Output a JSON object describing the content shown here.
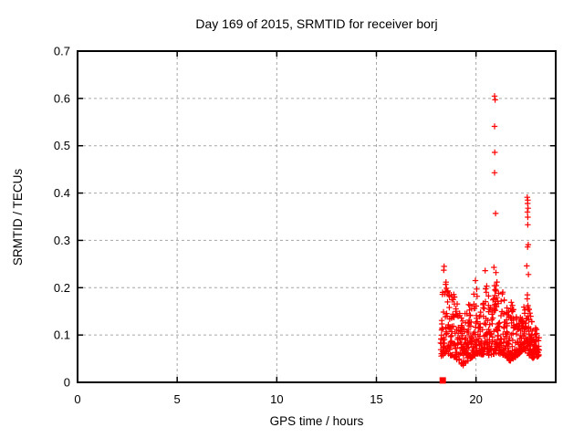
{
  "figure": {
    "background": "#ffffff",
    "kind": "gnuplot-style scatter plot"
  },
  "chart_data": {
    "type": "scatter",
    "title": "Day 169 of 2015, SRMTID for receiver borj",
    "xlabel": "GPS time / hours",
    "ylabel": "SRMTID / TECUs",
    "xlim": [
      0,
      24
    ],
    "ylim": [
      0,
      0.7
    ],
    "xticks": [
      0,
      5,
      10,
      15,
      20
    ],
    "xtick_labels": [
      "0",
      "5",
      "10",
      "15",
      "20"
    ],
    "yticks": [
      0,
      0.1,
      0.2,
      0.3,
      0.4,
      0.5,
      0.6,
      0.7
    ],
    "ytick_labels": [
      "0",
      "0.1",
      "0.2",
      "0.3",
      "0.4",
      "0.5",
      "0.6",
      "0.7"
    ],
    "grid": "dashed-major",
    "grid_color": "#a6a6a6",
    "axis_color": "#000000",
    "legend": "none",
    "marker": "plus",
    "marker_color": "#ff0000",
    "data_time_span_hours": [
      18.2,
      23.2
    ],
    "square_marker_point": [
      18.33,
      0.004
    ],
    "outlier_points": [
      [
        20.93,
        0.605
      ],
      [
        20.96,
        0.597
      ],
      [
        20.93,
        0.541
      ],
      [
        20.94,
        0.486
      ],
      [
        20.93,
        0.443
      ],
      [
        20.98,
        0.357
      ],
      [
        20.9,
        0.243
      ],
      [
        21.0,
        0.232
      ],
      [
        22.57,
        0.391
      ],
      [
        22.6,
        0.385
      ],
      [
        22.59,
        0.378
      ],
      [
        22.61,
        0.368
      ],
      [
        22.58,
        0.36
      ],
      [
        22.6,
        0.349
      ],
      [
        22.6,
        0.333
      ],
      [
        22.62,
        0.291
      ],
      [
        22.59,
        0.286
      ],
      [
        22.55,
        0.246
      ],
      [
        22.63,
        0.228
      ],
      [
        18.4,
        0.245
      ],
      [
        18.38,
        0.237
      ],
      [
        20.46,
        0.236
      ],
      [
        19.97,
        0.215
      ],
      [
        21.05,
        0.212
      ]
    ],
    "dense_band": {
      "description": "dense cloud of plus markers between hours 18.2 and 23.2, mostly 0.05-0.22 TECUs with vertical spikes near 18.4, 20.0, 20.45, 20.9-21.3 and 22.6",
      "t_start": 18.22,
      "t_end": 23.18,
      "t_step": 0.01,
      "seed": 2015169,
      "extra_point_prob": 0.3,
      "burst_prob": 0.06,
      "weight_exponent": 1.7,
      "t_jitter": 0.012,
      "envelope_max": [
        [
          18.22,
          0.12
        ],
        [
          18.32,
          0.225
        ],
        [
          18.42,
          0.245
        ],
        [
          18.55,
          0.2
        ],
        [
          18.75,
          0.185
        ],
        [
          18.95,
          0.19
        ],
        [
          19.15,
          0.15
        ],
        [
          19.35,
          0.13
        ],
        [
          19.6,
          0.17
        ],
        [
          19.8,
          0.16
        ],
        [
          19.98,
          0.215
        ],
        [
          20.15,
          0.17
        ],
        [
          20.3,
          0.16
        ],
        [
          20.45,
          0.23
        ],
        [
          20.6,
          0.195
        ],
        [
          20.75,
          0.17
        ],
        [
          20.9,
          0.215
        ],
        [
          21.05,
          0.21
        ],
        [
          21.25,
          0.205
        ],
        [
          21.45,
          0.18
        ],
        [
          21.6,
          0.155
        ],
        [
          21.8,
          0.19
        ],
        [
          21.95,
          0.16
        ],
        [
          22.15,
          0.135
        ],
        [
          22.35,
          0.145
        ],
        [
          22.55,
          0.205
        ],
        [
          22.7,
          0.15
        ],
        [
          22.85,
          0.125
        ],
        [
          23.0,
          0.115
        ],
        [
          23.18,
          0.1
        ]
      ],
      "envelope_min": [
        [
          18.22,
          0.055
        ],
        [
          18.6,
          0.06
        ],
        [
          19.0,
          0.05
        ],
        [
          19.35,
          0.035
        ],
        [
          19.7,
          0.05
        ],
        [
          20.1,
          0.06
        ],
        [
          20.5,
          0.055
        ],
        [
          20.9,
          0.06
        ],
        [
          21.3,
          0.06
        ],
        [
          21.7,
          0.045
        ],
        [
          22.05,
          0.055
        ],
        [
          22.4,
          0.07
        ],
        [
          22.75,
          0.05
        ],
        [
          23.18,
          0.055
        ]
      ]
    }
  }
}
